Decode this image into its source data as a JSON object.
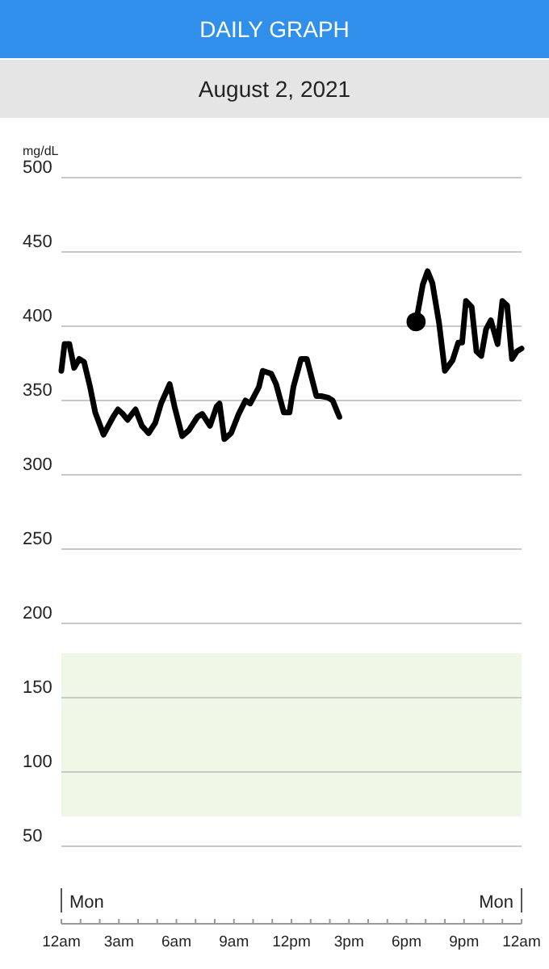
{
  "chart_data": {
    "type": "line",
    "title": "DAILY GRAPH",
    "subtitle": "August 2, 2021",
    "ylabel": "mg/dL",
    "annotations": [
      "Mon",
      "Mon"
    ],
    "xlim": [
      "2021-08-02T00:00",
      "2021-08-03T00:00"
    ],
    "ylim": [
      50,
      500
    ],
    "xticks": [
      {
        "value": "2021-08-02T00:00",
        "label": "12am"
      },
      {
        "value": "2021-08-02T01:00",
        "label": null
      },
      {
        "value": "2021-08-02T02:00",
        "label": null
      },
      {
        "value": "2021-08-02T03:00",
        "label": "3am"
      },
      {
        "value": "2021-08-02T04:00",
        "label": null
      },
      {
        "value": "2021-08-02T05:00",
        "label": null
      },
      {
        "value": "2021-08-02T06:00",
        "label": "6am"
      },
      {
        "value": "2021-08-02T07:00",
        "label": null
      },
      {
        "value": "2021-08-02T08:00",
        "label": null
      },
      {
        "value": "2021-08-02T09:00",
        "label": "9am"
      },
      {
        "value": "2021-08-02T10:00",
        "label": null
      },
      {
        "value": "2021-08-02T11:00",
        "label": null
      },
      {
        "value": "2021-08-02T12:00",
        "label": "12pm"
      },
      {
        "value": "2021-08-02T13:00",
        "label": null
      },
      {
        "value": "2021-08-02T14:00",
        "label": null
      },
      {
        "value": "2021-08-02T15:00",
        "label": "3pm"
      },
      {
        "value": "2021-08-02T16:00",
        "label": null
      },
      {
        "value": "2021-08-02T17:00",
        "label": null
      },
      {
        "value": "2021-08-02T18:00",
        "label": "6pm"
      },
      {
        "value": "2021-08-02T19:00",
        "label": null
      },
      {
        "value": "2021-08-02T20:00",
        "label": null
      },
      {
        "value": "2021-08-02T21:00",
        "label": "9pm"
      },
      {
        "value": "2021-08-02T22:00",
        "label": null
      },
      {
        "value": "2021-08-02T23:00",
        "label": null
      },
      {
        "value": "2021-08-03T00:00",
        "label": "12am"
      }
    ],
    "yticks": [
      50,
      100,
      150,
      200,
      250,
      300,
      350,
      400,
      450,
      500
    ],
    "grid": "y",
    "line_style": "solid",
    "bands": [
      {
        "axis": "y",
        "from": 70,
        "to": 180,
        "color": "#eff7e6"
      }
    ],
    "series": [
      {
        "color": "#000000",
        "marker": "none",
        "x": [
          "2021-08-02T00:00",
          "2021-08-02T00:10",
          "2021-08-02T00:25",
          "2021-08-02T00:40",
          "2021-08-02T00:56",
          "2021-08-02T01:11",
          "2021-08-02T01:30",
          "2021-08-02T01:46",
          "2021-08-02T02:12",
          "2021-08-02T02:42",
          "2021-08-02T02:57",
          "2021-08-02T03:12",
          "2021-08-02T03:27",
          "2021-08-02T03:52",
          "2021-08-02T04:12",
          "2021-08-02T04:33",
          "2021-08-02T04:54",
          "2021-08-02T05:12",
          "2021-08-02T05:39",
          "2021-08-02T05:54",
          "2021-08-02T06:18",
          "2021-08-02T06:39",
          "2021-08-02T07:06",
          "2021-08-02T07:21",
          "2021-08-02T07:45",
          "2021-08-02T08:06",
          "2021-08-02T08:15",
          "2021-08-02T08:30",
          "2021-08-02T08:51",
          "2021-08-02T09:15",
          "2021-08-02T09:36",
          "2021-08-02T09:51",
          "2021-08-02T10:18",
          "2021-08-02T10:30",
          "2021-08-02T10:57",
          "2021-08-02T11:12",
          "2021-08-02T11:36",
          "2021-08-02T11:54",
          "2021-08-02T12:06",
          "2021-08-02T12:30",
          "2021-08-02T12:48",
          "2021-08-02T13:18",
          "2021-08-02T13:33",
          "2021-08-02T13:54",
          "2021-08-02T14:09",
          "2021-08-02T14:30",
          "2021-08-02T16:30",
          "2021-08-02T18:30",
          "2021-08-02T18:51",
          "2021-08-02T19:06",
          "2021-08-02T19:21",
          "2021-08-02T19:42",
          "2021-08-02T20:00",
          "2021-08-02T20:24",
          "2021-08-02T20:42",
          "2021-08-02T20:54",
          "2021-08-02T21:06",
          "2021-08-02T21:24",
          "2021-08-02T21:39",
          "2021-08-02T21:54",
          "2021-08-02T22:09",
          "2021-08-02T22:24",
          "2021-08-02T22:45",
          "2021-08-02T23:00",
          "2021-08-02T23:15",
          "2021-08-02T23:30",
          "2021-08-02T23:45",
          "2021-08-03T00:00"
        ],
        "values": [
          370,
          388,
          388,
          372,
          378,
          376,
          359,
          342,
          327,
          339,
          344,
          341,
          337,
          344,
          333,
          328,
          335,
          348,
          361,
          346,
          326,
          330,
          339,
          341,
          333,
          346,
          348,
          324,
          328,
          341,
          350,
          348,
          359,
          370,
          368,
          361,
          342,
          342,
          359,
          378,
          378,
          353,
          353,
          352,
          350,
          339,
          null,
          403,
          428,
          437,
          429,
          402,
          370,
          377,
          389,
          389,
          417,
          413,
          383,
          380,
          398,
          404,
          388,
          417,
          414,
          378,
          383,
          385
        ]
      },
      {
        "type": "scatter",
        "color": "#000000",
        "marker": "circle",
        "x": [
          "2021-08-02T18:30"
        ],
        "values": [
          403
        ]
      }
    ]
  }
}
